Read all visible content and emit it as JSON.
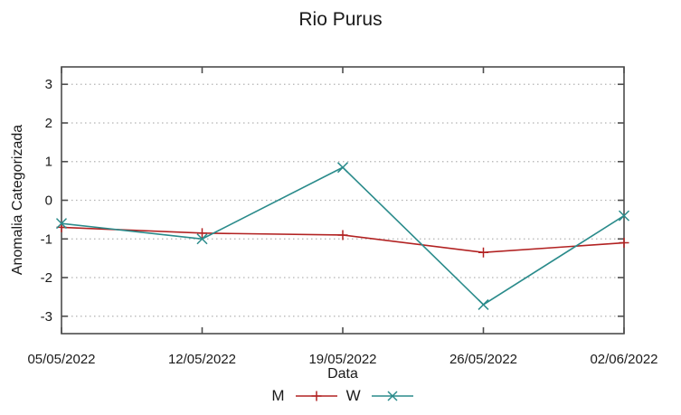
{
  "chart_data": {
    "type": "line",
    "title": "Rio Purus",
    "xlabel": "Data",
    "ylabel": "Anomalia Categorizada",
    "categories": [
      "05/05/2022",
      "12/05/2022",
      "19/05/2022",
      "26/05/2022",
      "02/06/2022"
    ],
    "series": [
      {
        "name": "M",
        "marker": "plus",
        "color": "#b22222",
        "values": [
          -0.7,
          -0.85,
          -0.9,
          -1.35,
          -1.1
        ]
      },
      {
        "name": "W",
        "marker": "cross",
        "color": "#2a8b8b",
        "values": [
          -0.6,
          -1.0,
          0.85,
          -2.7,
          -0.4
        ]
      }
    ],
    "yticks": [
      -3,
      -2,
      -1,
      0,
      1,
      2,
      3
    ],
    "ylim": [
      -3.45,
      3.45
    ],
    "grid": true,
    "legend_position": "bottom",
    "axis_color": "#4d4d4d",
    "grid_color": "#b3b3b3",
    "text_color": "#1a1a1a"
  }
}
